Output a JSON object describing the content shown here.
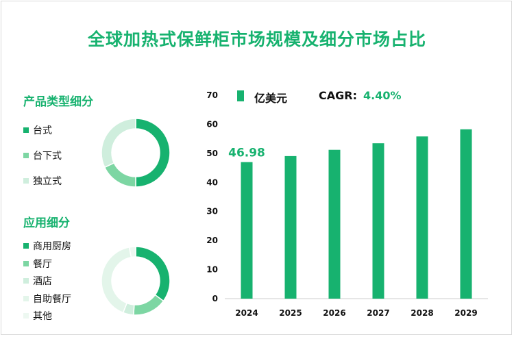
{
  "title": "全球加热式保鲜柜市场规模及细分市场占比",
  "colors": {
    "primary": "#17b26f",
    "medium": "#7dd6a3",
    "light": "#cfeedd",
    "lighter": "#e3f5ea",
    "lightest": "#edf8f1"
  },
  "product_section": {
    "title": "产品类型细分",
    "items": [
      {
        "label": "台式",
        "color": "#17b26f",
        "share": 0.5
      },
      {
        "label": "台下式",
        "color": "#7dd6a3",
        "share": 0.18
      },
      {
        "label": "独立式",
        "color": "#cfeedd",
        "share": 0.32
      }
    ]
  },
  "application_section": {
    "title": "应用细分",
    "items": [
      {
        "label": "商用厨房",
        "color": "#17b26f",
        "share": 0.35
      },
      {
        "label": "餐厅",
        "color": "#7dd6a3",
        "share": 0.16
      },
      {
        "label": "酒店",
        "color": "#cfeedd",
        "share": 0.05
      },
      {
        "label": "自助餐厅",
        "color": "#e3f5ea",
        "share": 0.41
      },
      {
        "label": "其他",
        "color": "#edf8f1",
        "share": 0.03
      }
    ]
  },
  "legend": {
    "unit": "亿美元",
    "cagr_label": "CAGR:",
    "cagr_value": "4.40%"
  },
  "chart_data": {
    "type": "bar",
    "categories": [
      "2024",
      "2025",
      "2026",
      "2027",
      "2028",
      "2029"
    ],
    "series": [
      {
        "name": "亿美元",
        "values": [
          46.98,
          49.05,
          51.21,
          53.46,
          55.81,
          58.27
        ]
      }
    ],
    "ylim": [
      0,
      70
    ],
    "yticks": [
      "0",
      "10",
      "20",
      "30",
      "40",
      "50",
      "60",
      "70"
    ],
    "data_labels": [
      {
        "category": "2024",
        "text": "46.98"
      }
    ],
    "grid": false,
    "legend": "top"
  }
}
